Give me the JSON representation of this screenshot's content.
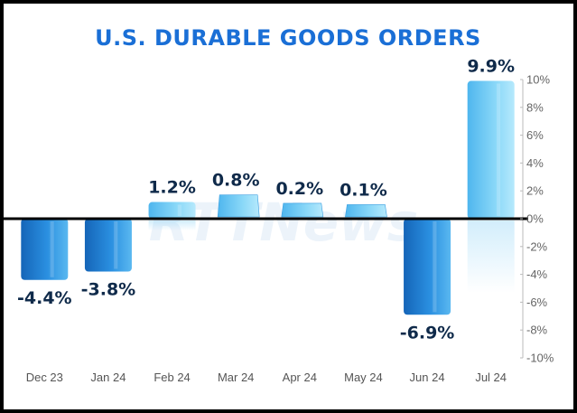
{
  "chart_data": {
    "type": "bar",
    "title": "U.S. DURABLE GOODS ORDERS",
    "categories": [
      "Dec 23",
      "Jan 24",
      "Feb 24",
      "Mar 24",
      "Apr 24",
      "May 24",
      "Jun 24",
      "Jul 24"
    ],
    "values": [
      -4.4,
      -3.8,
      1.2,
      0.8,
      0.2,
      0.1,
      -6.9,
      9.9
    ],
    "data_labels": [
      "-4.4%",
      "-3.8%",
      "1.2%",
      "0.8%",
      "0.2%",
      "0.1%",
      "-6.9%",
      "9.9%"
    ],
    "y_ticks": [
      10,
      8,
      6,
      4,
      2,
      0,
      -2,
      -4,
      -6,
      -8,
      -10
    ],
    "y_tick_labels": [
      "10%",
      "8%",
      "6%",
      "4%",
      "2%",
      "0%",
      "-2%",
      "-4%",
      "-6%",
      "-8%",
      "-10%"
    ],
    "ylim": [
      -10,
      10
    ],
    "grid": false,
    "y_axis_side": "right",
    "watermark": "RTTNews",
    "colors": {
      "bar_dark": "#1f7fd4",
      "bar_light": "#7fd3f7",
      "title": "#1a6fd6",
      "label": "#0f2a4a"
    }
  }
}
